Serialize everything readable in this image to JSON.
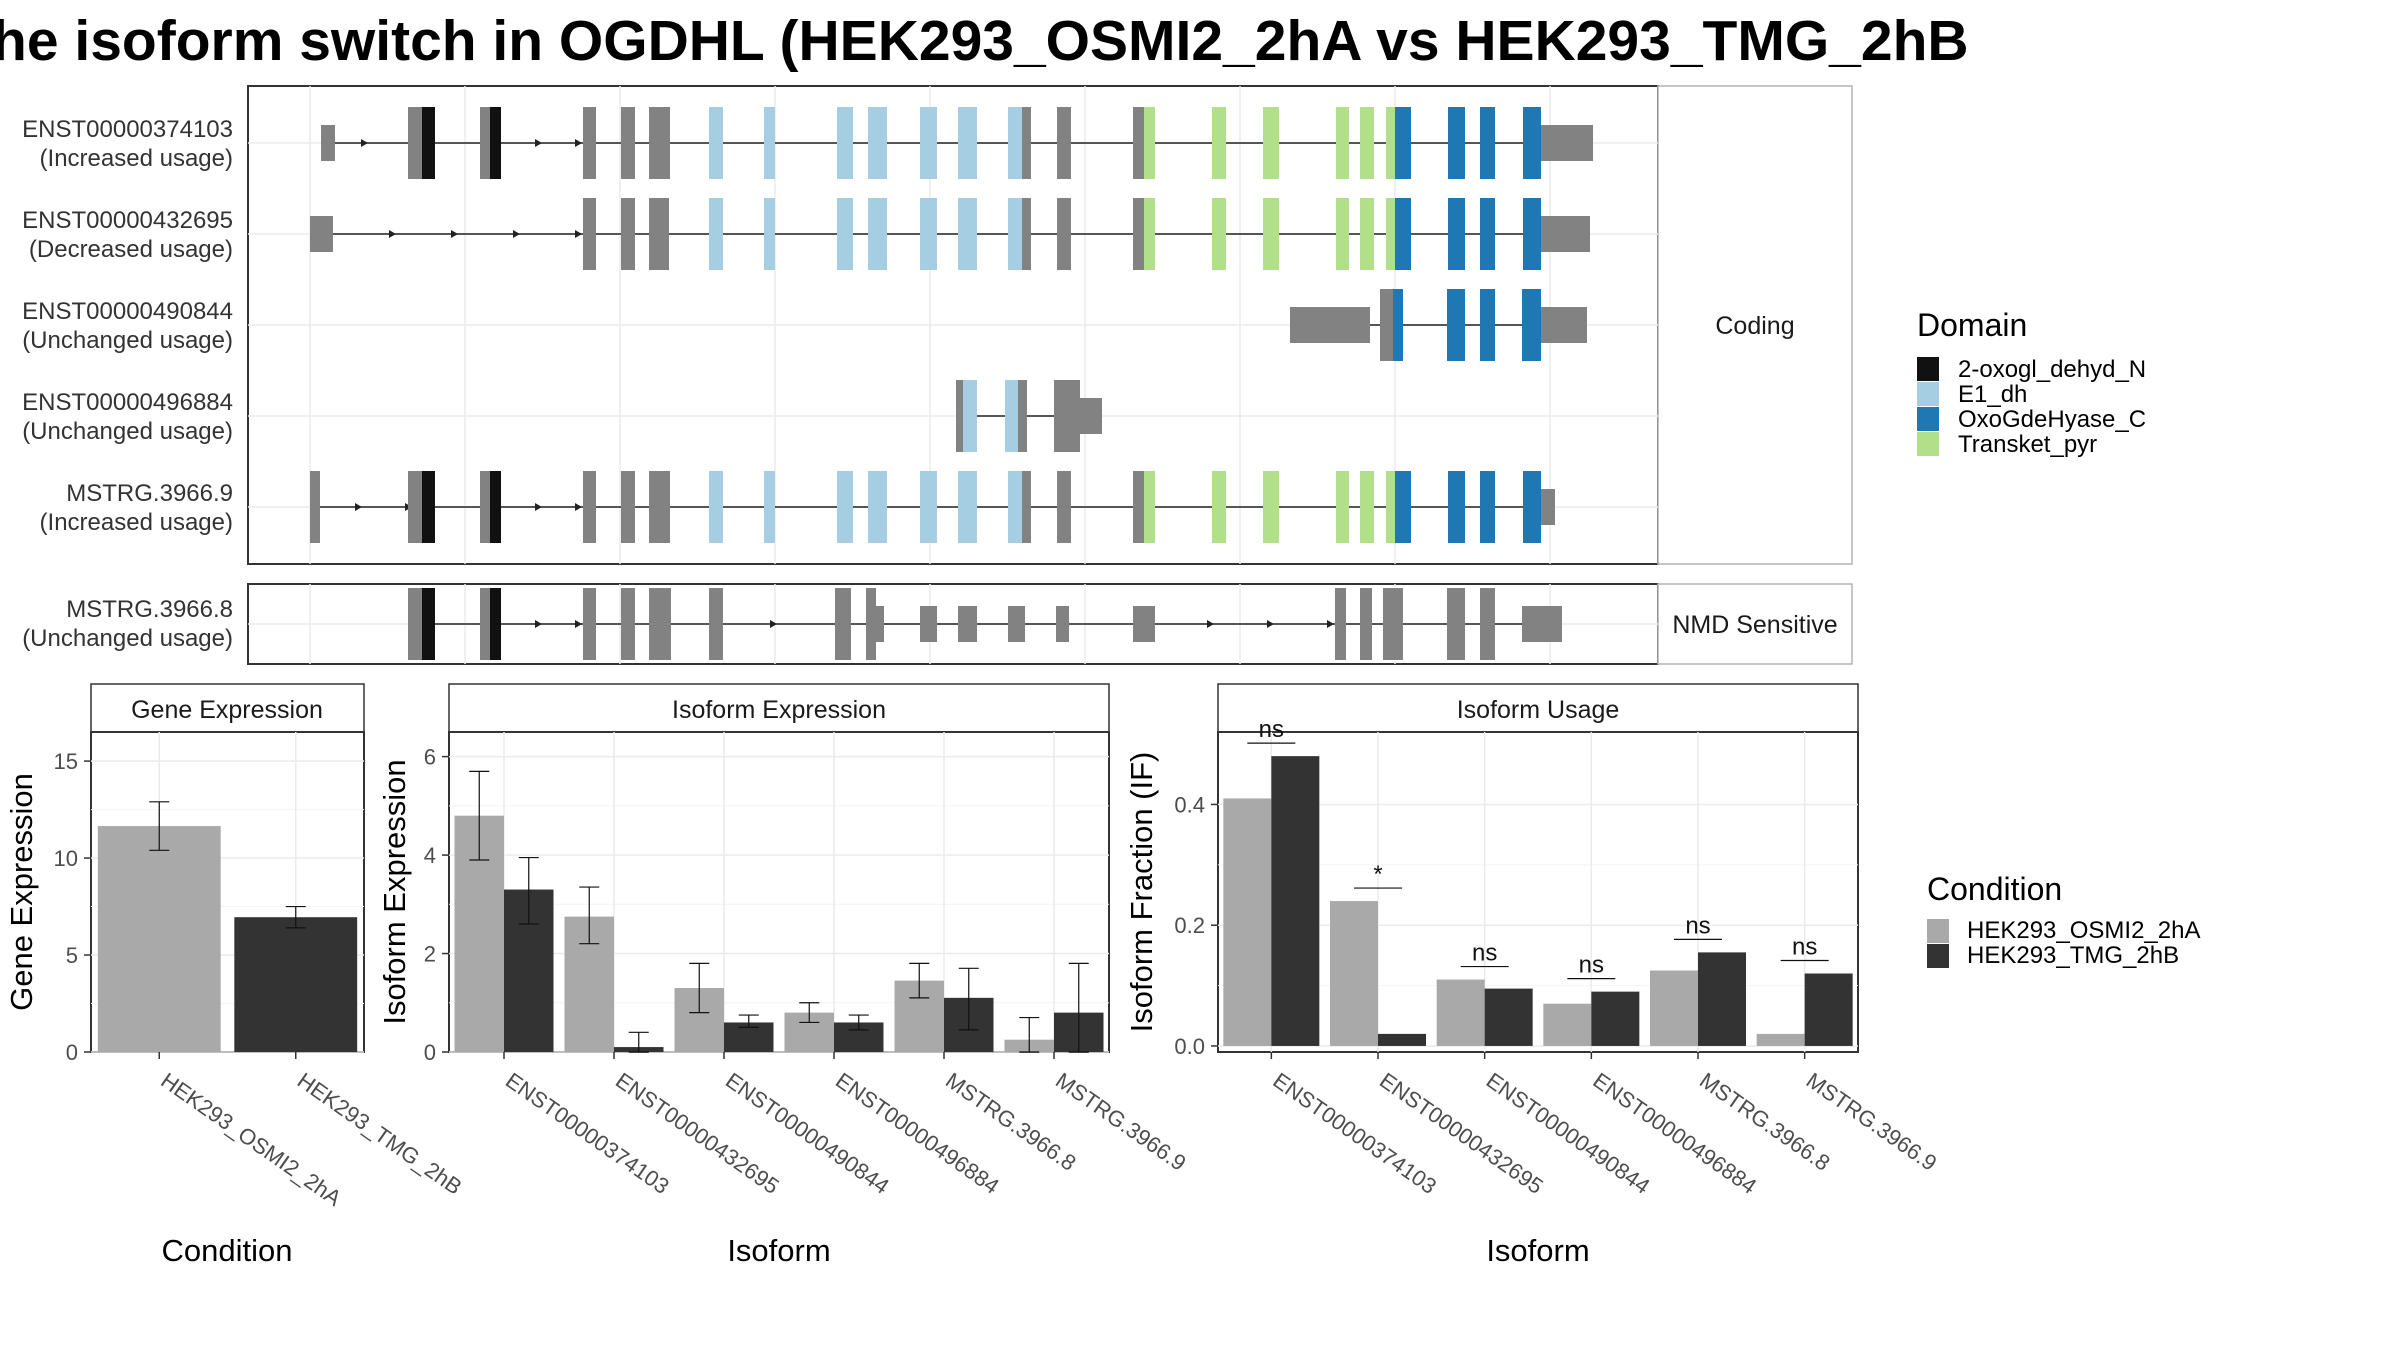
{
  "title": "he isoform switch in OGDHL (HEK293_OSMI2_2hA vs HEK293_TMG_2hB",
  "colors": {
    "intron": "#222222",
    "exon": "#828282",
    "2-oxogl_dehyd_N": "#111111",
    "E1_dh": "#a6cee3",
    "OxoGdeHyase_C": "#1f78b4",
    "Transket_pyr": "#b2df8a",
    "cond1": "#a9a9a9",
    "cond2": "#333333"
  },
  "strips": {
    "coding": "Coding",
    "nmd": "NMD Sensitive"
  },
  "legend_domain": {
    "title": "Domain",
    "items": [
      "2-oxogl_dehyd_N",
      "E1_dh",
      "OxoGdeHyase_C",
      "Transket_pyr"
    ]
  },
  "legend_condition": {
    "title": "Condition",
    "items": [
      "HEK293_OSMI2_2hA",
      "HEK293_TMG_2hB"
    ]
  },
  "transcripts": [
    {
      "id": "ENST00000374103",
      "usage": "(Increased usage)",
      "group": "coding"
    },
    {
      "id": "ENST00000432695",
      "usage": "(Decreased usage)",
      "group": "coding"
    },
    {
      "id": "ENST00000490844",
      "usage": "(Unchanged usage)",
      "group": "coding"
    },
    {
      "id": "ENST00000496884",
      "usage": "(Unchanged usage)",
      "group": "coding"
    },
    {
      "id": "MSTRG.3966.9",
      "usage": "(Increased usage)",
      "group": "coding"
    },
    {
      "id": "MSTRG.3966.8",
      "usage": "(Unchanged usage)",
      "group": "nmd"
    }
  ],
  "chart_data": [
    {
      "type": "bar",
      "title": "Gene Expression",
      "xlabel": "Condition",
      "ylabel": "Gene Expression",
      "ylim": [
        0,
        16.5
      ],
      "yticks": [
        0,
        5,
        10,
        15
      ],
      "categories": [
        "HEK293_OSMI2_2hA",
        "HEK293_TMG_2hB"
      ],
      "values": [
        11.65,
        6.95
      ],
      "errors": [
        [
          10.4,
          12.9
        ],
        [
          6.4,
          7.5
        ]
      ]
    },
    {
      "type": "bar",
      "title": "Isoform Expression",
      "xlabel": "Isoform",
      "ylabel": "Isoform Expression",
      "ylim": [
        0,
        6.5
      ],
      "yticks": [
        0,
        2,
        4,
        6
      ],
      "categories": [
        "ENST00000374103",
        "ENST00000432695",
        "ENST00000490844",
        "ENST00000496884",
        "MSTRG.3966.8",
        "MSTRG.3966.9"
      ],
      "series": [
        {
          "name": "HEK293_OSMI2_2hA",
          "values": [
            4.8,
            2.75,
            1.3,
            0.8,
            1.45,
            0.25
          ],
          "errors": [
            [
              3.9,
              5.7
            ],
            [
              2.2,
              3.35
            ],
            [
              0.8,
              1.8
            ],
            [
              0.6,
              1.0
            ],
            [
              1.1,
              1.8
            ],
            [
              0.0,
              0.7
            ]
          ]
        },
        {
          "name": "HEK293_TMG_2hB",
          "values": [
            3.3,
            0.1,
            0.6,
            0.6,
            1.1,
            0.8
          ],
          "errors": [
            [
              2.6,
              3.95
            ],
            [
              0.0,
              0.4
            ],
            [
              0.5,
              0.75
            ],
            [
              0.45,
              0.75
            ],
            [
              0.45,
              1.7
            ],
            [
              0.0,
              1.8
            ]
          ]
        }
      ]
    },
    {
      "type": "bar",
      "title": "Isoform Usage",
      "xlabel": "Isoform",
      "ylabel": "Isoform Fraction (IF)",
      "ylim": [
        -0.01,
        0.52
      ],
      "yticks": [
        0.0,
        0.2,
        0.4
      ],
      "tick_labels": [
        "0.0",
        "0.2",
        "0.4"
      ],
      "categories": [
        "ENST00000374103",
        "ENST00000432695",
        "ENST00000490844",
        "ENST00000496884",
        "MSTRG.3966.8",
        "MSTRG.3966.9"
      ],
      "series": [
        {
          "name": "HEK293_OSMI2_2hA",
          "values": [
            0.41,
            0.24,
            0.11,
            0.07,
            0.125,
            0.02
          ]
        },
        {
          "name": "HEK293_TMG_2hB",
          "values": [
            0.48,
            0.02,
            0.095,
            0.09,
            0.155,
            0.12
          ]
        }
      ],
      "significance": [
        "ns",
        "*",
        "ns",
        "ns",
        "ns",
        "ns"
      ]
    }
  ]
}
